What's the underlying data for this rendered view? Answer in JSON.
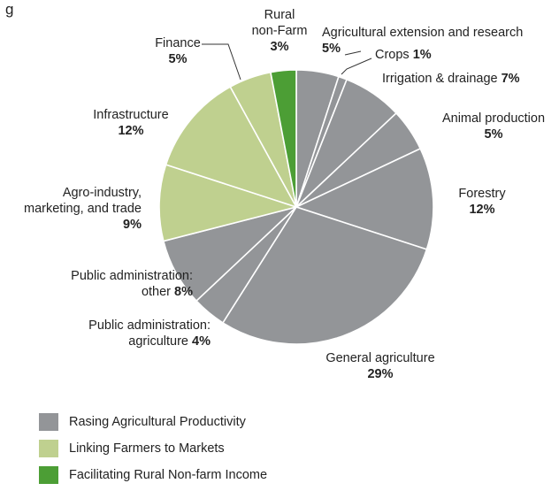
{
  "chart_data": {
    "type": "pie",
    "title": "",
    "legend_position": "bottom-left",
    "groups": [
      {
        "key": "productivity",
        "label": "Rasing Agricultural Productivity",
        "color": "#939598"
      },
      {
        "key": "markets",
        "label": "Linking Farmers to Markets",
        "color": "#bfd08f"
      },
      {
        "key": "nonfarm",
        "label": "Facilitating Rural Non-farm Income",
        "color": "#4c9e35"
      }
    ],
    "slices": [
      {
        "name": "Agricultural extension and research",
        "value": 5,
        "group": "productivity",
        "label_lines": [
          "Agricultural extension and research"
        ],
        "value_text": "5%"
      },
      {
        "name": "Crops",
        "value": 1,
        "group": "productivity",
        "label_lines": [
          "Crops"
        ],
        "value_text": "1%"
      },
      {
        "name": "Irrigation & drainage",
        "value": 7,
        "group": "productivity",
        "label_lines": [
          "Irrigation & drainage"
        ],
        "value_text": "7%"
      },
      {
        "name": "Animal production",
        "value": 5,
        "group": "productivity",
        "label_lines": [
          "Animal production"
        ],
        "value_text": "5%"
      },
      {
        "name": "Forestry",
        "value": 12,
        "group": "productivity",
        "label_lines": [
          "Forestry"
        ],
        "value_text": "12%"
      },
      {
        "name": "General agriculture",
        "value": 29,
        "group": "productivity",
        "label_lines": [
          "General agriculture"
        ],
        "value_text": "29%"
      },
      {
        "name": "Public administration: agriculture",
        "value": 4,
        "group": "productivity",
        "label_lines": [
          "Public administration:",
          "agriculture"
        ],
        "value_text": "4%"
      },
      {
        "name": "Public administration: other",
        "value": 8,
        "group": "productivity",
        "label_lines": [
          "Public administration:",
          "other"
        ],
        "value_text": "8%"
      },
      {
        "name": "Agro-industry, marketing, and trade",
        "value": 9,
        "group": "markets",
        "label_lines": [
          "Agro-industry,",
          "marketing, and trade"
        ],
        "value_text": "9%"
      },
      {
        "name": "Infrastructure",
        "value": 12,
        "group": "markets",
        "label_lines": [
          "Infrastructure"
        ],
        "value_text": "12%"
      },
      {
        "name": "Finance",
        "value": 5,
        "group": "markets",
        "label_lines": [
          "Finance"
        ],
        "value_text": "5%"
      },
      {
        "name": "Rural non-Farm",
        "value": 3,
        "group": "nonfarm",
        "label_lines": [
          "Rural",
          "non-Farm"
        ],
        "value_text": "3%"
      }
    ]
  },
  "top_left_fragment": "g"
}
